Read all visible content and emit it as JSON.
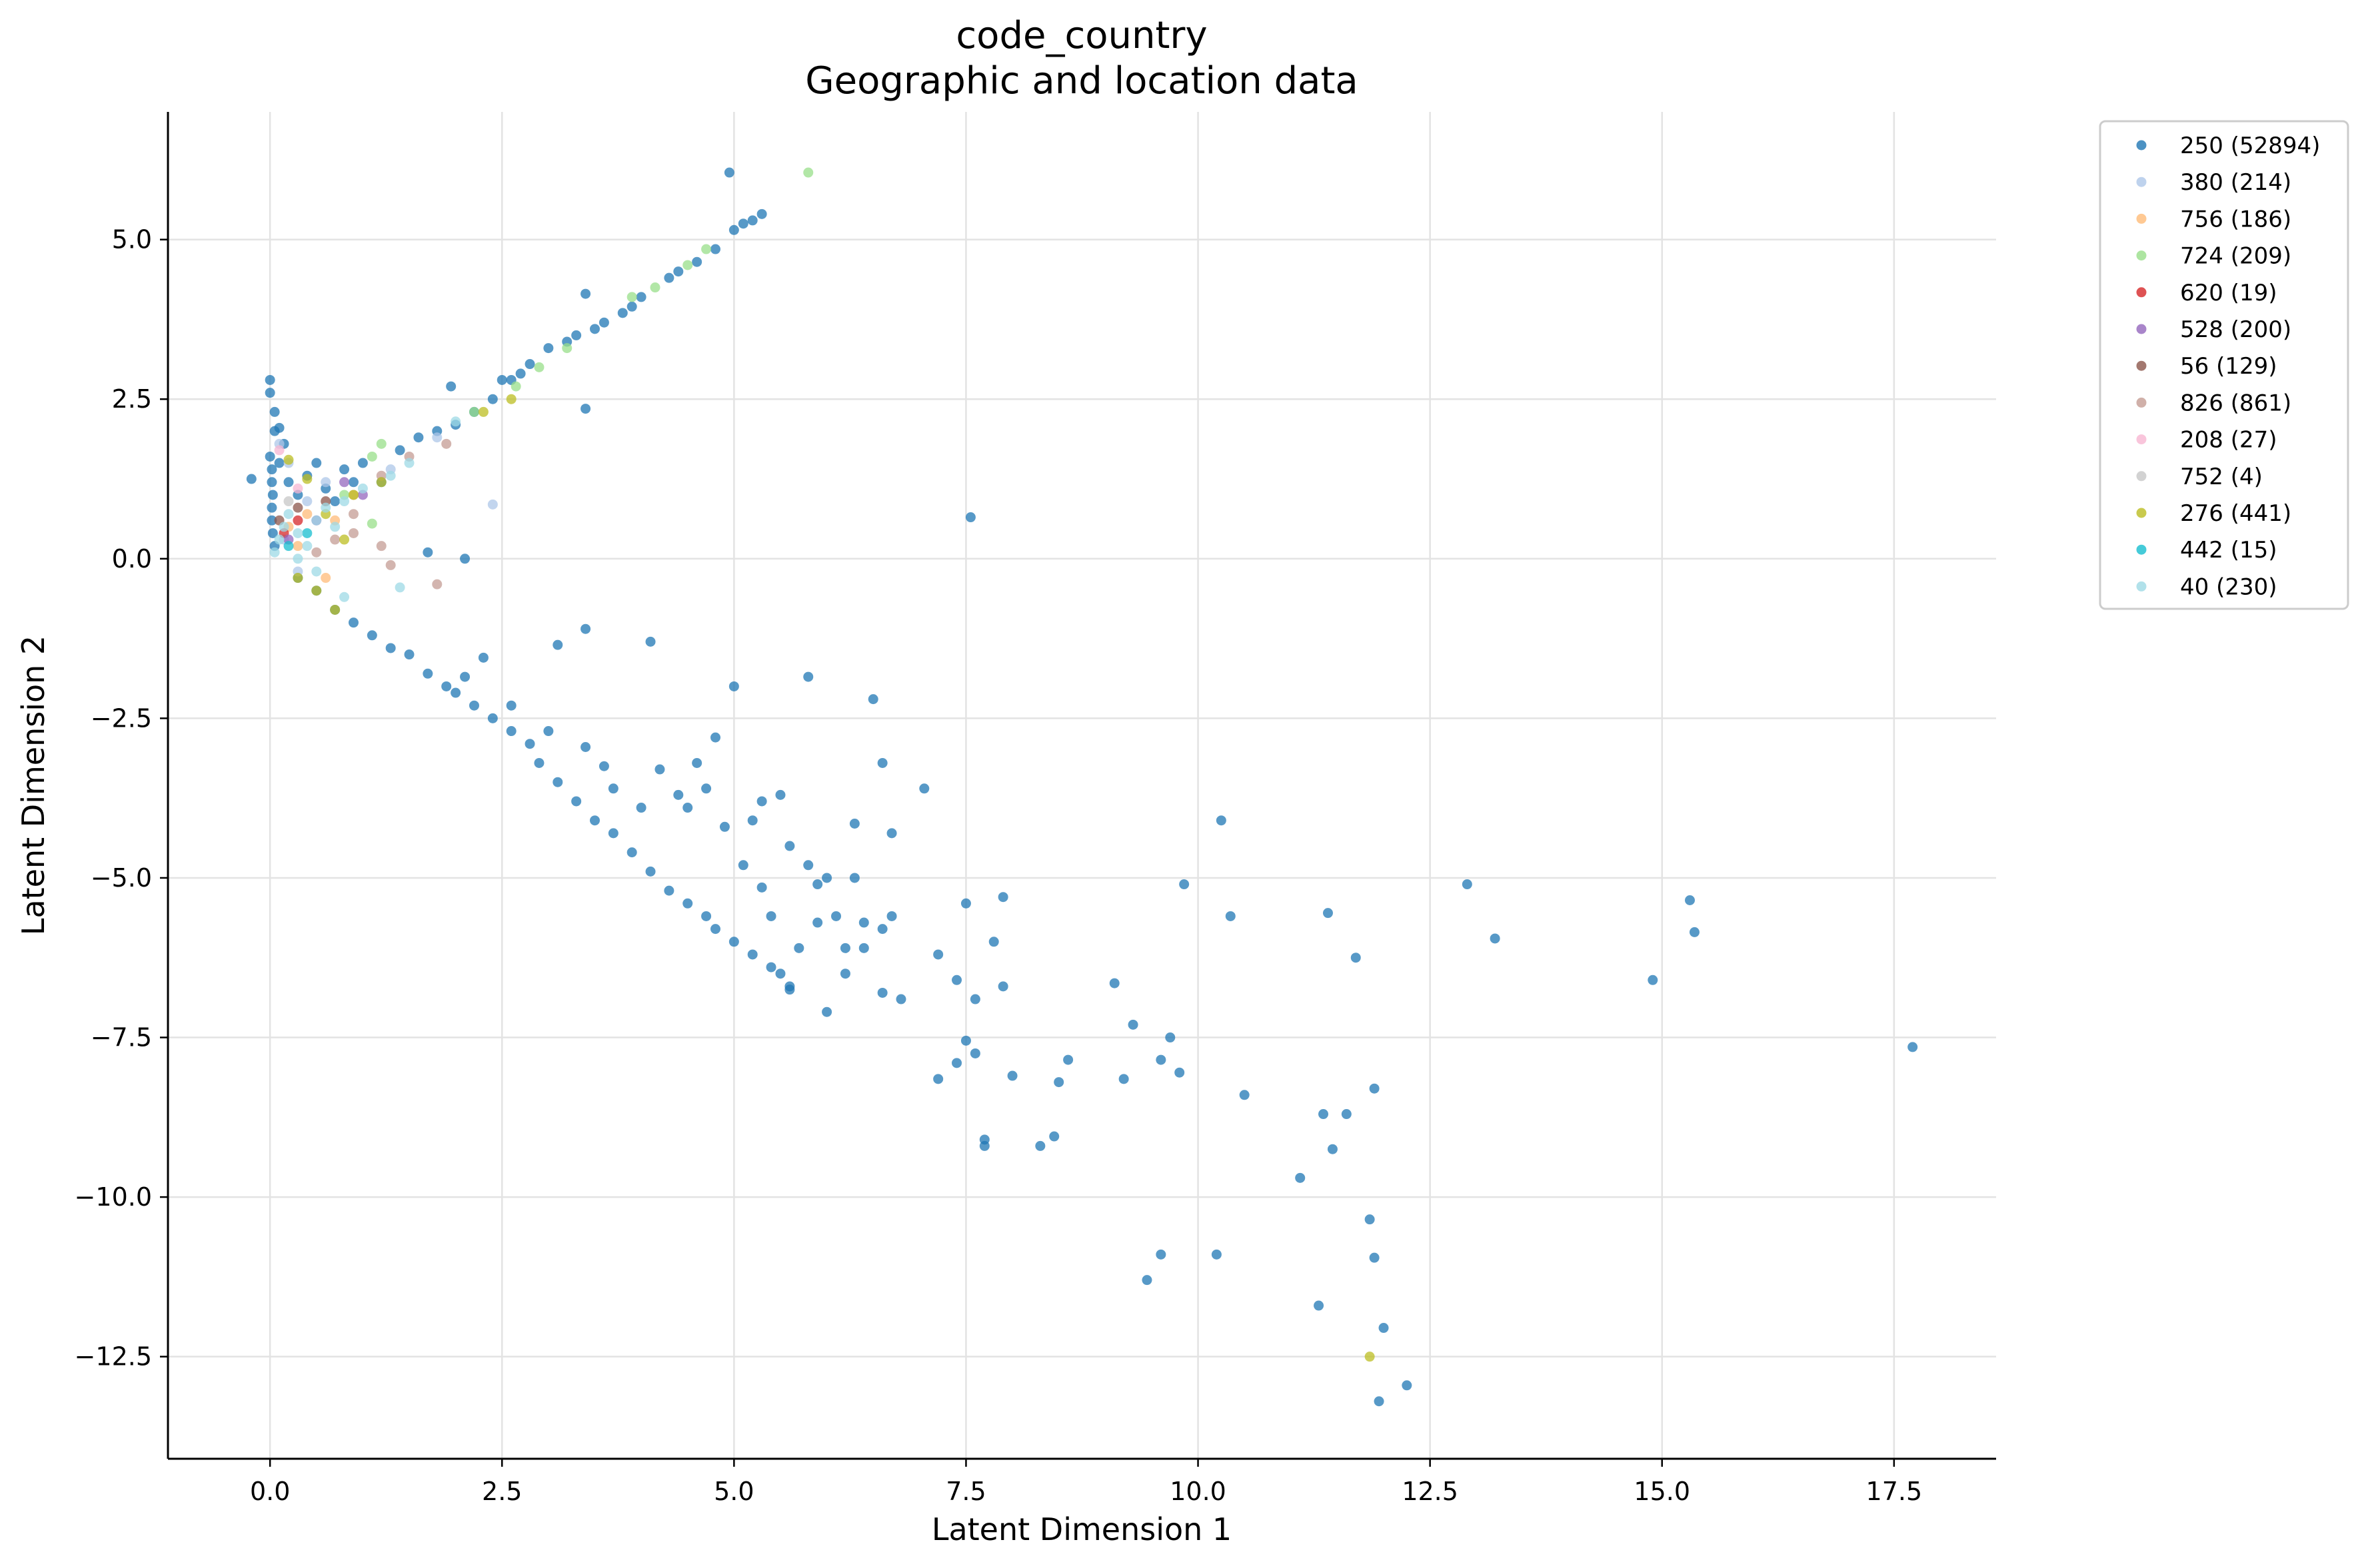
{
  "chart_data": {
    "type": "scatter",
    "title": "code_country",
    "subtitle": "Geographic and location data",
    "xlabel": "Latent Dimension 1",
    "ylabel": "Latent Dimension 2",
    "xlim": [
      -1.1,
      18.6
    ],
    "ylim": [
      -14.1,
      7.0
    ],
    "xticks": [
      0.0,
      2.5,
      5.0,
      7.5,
      10.0,
      12.5,
      15.0,
      17.5
    ],
    "xtick_labels": [
      "0.0",
      "2.5",
      "5.0",
      "7.5",
      "10.0",
      "12.5",
      "15.0",
      "17.5"
    ],
    "yticks": [
      5.0,
      2.5,
      0.0,
      -2.5,
      -5.0,
      -7.5,
      -10.0,
      -12.5
    ],
    "ytick_labels": [
      "5.0",
      "2.5",
      "0.0",
      "−2.5",
      "−5.0",
      "−7.5",
      "−10.0",
      "−12.5"
    ],
    "grid": true,
    "legend_position": "outside-top-right",
    "series": [
      {
        "name": "250 (52894)",
        "color": "#1f77b4",
        "points": [
          [
            -0.2,
            1.25
          ],
          [
            0.0,
            2.8
          ],
          [
            0.0,
            2.6
          ],
          [
            0.05,
            2.3
          ],
          [
            0.05,
            2.0
          ],
          [
            0.0,
            1.6
          ],
          [
            0.02,
            1.4
          ],
          [
            0.02,
            1.2
          ],
          [
            0.03,
            1.0
          ],
          [
            0.02,
            0.8
          ],
          [
            0.02,
            0.6
          ],
          [
            0.03,
            0.4
          ],
          [
            0.05,
            0.2
          ],
          [
            0.1,
            2.05
          ],
          [
            0.15,
            1.8
          ],
          [
            0.1,
            1.5
          ],
          [
            0.2,
            1.2
          ],
          [
            0.3,
            1.0
          ],
          [
            0.4,
            1.3
          ],
          [
            0.5,
            1.5
          ],
          [
            0.6,
            1.1
          ],
          [
            0.7,
            0.9
          ],
          [
            0.8,
            1.4
          ],
          [
            0.9,
            1.2
          ],
          [
            1.0,
            1.5
          ],
          [
            1.2,
            1.2
          ],
          [
            1.4,
            1.7
          ],
          [
            1.6,
            1.9
          ],
          [
            1.8,
            2.0
          ],
          [
            2.0,
            2.1
          ],
          [
            2.2,
            2.3
          ],
          [
            2.4,
            2.5
          ],
          [
            2.5,
            2.8
          ],
          [
            2.7,
            2.9
          ],
          [
            2.8,
            3.05
          ],
          [
            3.0,
            3.3
          ],
          [
            3.2,
            3.4
          ],
          [
            3.3,
            3.5
          ],
          [
            3.4,
            4.15
          ],
          [
            3.5,
            3.6
          ],
          [
            3.6,
            3.7
          ],
          [
            3.8,
            3.85
          ],
          [
            3.9,
            3.95
          ],
          [
            4.0,
            4.1
          ],
          [
            4.3,
            4.4
          ],
          [
            4.4,
            4.5
          ],
          [
            4.6,
            4.65
          ],
          [
            4.8,
            4.85
          ],
          [
            4.95,
            6.05
          ],
          [
            5.0,
            5.15
          ],
          [
            5.1,
            5.25
          ],
          [
            5.2,
            5.3
          ],
          [
            5.3,
            5.4
          ],
          [
            1.95,
            2.7
          ],
          [
            2.6,
            2.8
          ],
          [
            3.4,
            2.35
          ],
          [
            7.55,
            0.65
          ],
          [
            1.7,
            0.1
          ],
          [
            2.1,
            0.0
          ],
          [
            0.3,
            -0.3
          ],
          [
            0.5,
            -0.5
          ],
          [
            0.7,
            -0.8
          ],
          [
            0.9,
            -1.0
          ],
          [
            1.1,
            -1.2
          ],
          [
            1.3,
            -1.4
          ],
          [
            1.5,
            -1.5
          ],
          [
            1.7,
            -1.8
          ],
          [
            1.9,
            -2.0
          ],
          [
            2.0,
            -2.1
          ],
          [
            2.2,
            -2.3
          ],
          [
            2.4,
            -2.5
          ],
          [
            2.6,
            -2.7
          ],
          [
            2.8,
            -2.9
          ],
          [
            2.9,
            -3.2
          ],
          [
            3.1,
            -3.5
          ],
          [
            3.3,
            -3.8
          ],
          [
            3.5,
            -4.1
          ],
          [
            3.7,
            -4.3
          ],
          [
            3.9,
            -4.6
          ],
          [
            4.1,
            -4.9
          ],
          [
            4.3,
            -5.2
          ],
          [
            4.5,
            -5.4
          ],
          [
            4.7,
            -5.6
          ],
          [
            4.8,
            -5.8
          ],
          [
            5.0,
            -6.0
          ],
          [
            5.2,
            -6.2
          ],
          [
            5.4,
            -6.4
          ],
          [
            5.6,
            -6.7
          ],
          [
            5.6,
            -6.75
          ],
          [
            3.1,
            -1.35
          ],
          [
            3.4,
            -1.1
          ],
          [
            4.1,
            -1.3
          ],
          [
            2.3,
            -1.55
          ],
          [
            2.1,
            -1.85
          ],
          [
            2.6,
            -2.3
          ],
          [
            3.0,
            -2.7
          ],
          [
            3.4,
            -2.95
          ],
          [
            3.6,
            -3.25
          ],
          [
            3.7,
            -3.6
          ],
          [
            4.0,
            -3.9
          ],
          [
            4.2,
            -3.3
          ],
          [
            4.4,
            -3.7
          ],
          [
            4.5,
            -3.9
          ],
          [
            4.6,
            -3.2
          ],
          [
            4.7,
            -3.6
          ],
          [
            4.8,
            -2.8
          ],
          [
            4.9,
            -4.2
          ],
          [
            5.0,
            -2.0
          ],
          [
            5.1,
            -4.8
          ],
          [
            5.2,
            -4.1
          ],
          [
            5.3,
            -3.8
          ],
          [
            5.5,
            -3.7
          ],
          [
            5.6,
            -4.5
          ],
          [
            5.8,
            -1.85
          ],
          [
            5.8,
            -4.8
          ],
          [
            5.9,
            -5.1
          ],
          [
            6.0,
            -5.0
          ],
          [
            6.1,
            -5.6
          ],
          [
            6.2,
            -6.1
          ],
          [
            6.3,
            -5.0
          ],
          [
            6.3,
            -4.15
          ],
          [
            6.4,
            -5.7
          ],
          [
            6.5,
            -2.2
          ],
          [
            6.6,
            -3.2
          ],
          [
            6.6,
            -5.8
          ],
          [
            6.7,
            -4.3
          ],
          [
            6.7,
            -5.6
          ],
          [
            6.8,
            -6.9
          ],
          [
            7.05,
            -3.6
          ],
          [
            7.2,
            -6.2
          ],
          [
            7.4,
            -6.6
          ],
          [
            7.5,
            -5.4
          ],
          [
            7.6,
            -6.9
          ],
          [
            7.8,
            -6.0
          ],
          [
            7.9,
            -5.3
          ],
          [
            7.9,
            -6.7
          ],
          [
            5.3,
            -5.15
          ],
          [
            5.4,
            -5.6
          ],
          [
            5.5,
            -6.5
          ],
          [
            5.7,
            -6.1
          ],
          [
            5.9,
            -5.7
          ],
          [
            6.0,
            -7.1
          ],
          [
            6.2,
            -6.5
          ],
          [
            6.4,
            -6.1
          ],
          [
            6.6,
            -6.8
          ],
          [
            7.2,
            -8.15
          ],
          [
            7.4,
            -7.9
          ],
          [
            7.5,
            -7.55
          ],
          [
            7.6,
            -7.75
          ],
          [
            7.7,
            -9.1
          ],
          [
            7.7,
            -9.2
          ],
          [
            8.0,
            -8.1
          ],
          [
            8.3,
            -9.2
          ],
          [
            8.45,
            -9.05
          ],
          [
            8.5,
            -8.2
          ],
          [
            8.6,
            -7.85
          ],
          [
            9.1,
            -6.65
          ],
          [
            9.2,
            -8.15
          ],
          [
            9.3,
            -7.3
          ],
          [
            9.45,
            -11.3
          ],
          [
            9.6,
            -7.85
          ],
          [
            9.6,
            -10.9
          ],
          [
            9.7,
            -7.5
          ],
          [
            9.8,
            -8.05
          ],
          [
            9.85,
            -5.1
          ],
          [
            10.2,
            -10.9
          ],
          [
            10.25,
            -4.1
          ],
          [
            10.35,
            -5.6
          ],
          [
            10.5,
            -8.4
          ],
          [
            11.1,
            -9.7
          ],
          [
            11.3,
            -11.7
          ],
          [
            11.35,
            -8.7
          ],
          [
            11.4,
            -5.55
          ],
          [
            11.45,
            -9.25
          ],
          [
            11.6,
            -8.7
          ],
          [
            11.7,
            -6.25
          ],
          [
            11.85,
            -10.35
          ],
          [
            11.9,
            -10.95
          ],
          [
            11.9,
            -8.3
          ],
          [
            11.95,
            -13.2
          ],
          [
            12.0,
            -12.05
          ],
          [
            12.25,
            -12.95
          ],
          [
            12.9,
            -5.1
          ],
          [
            13.2,
            -5.95
          ],
          [
            14.9,
            -6.6
          ],
          [
            15.3,
            -5.35
          ],
          [
            15.35,
            -5.85
          ],
          [
            17.7,
            -7.65
          ]
        ]
      },
      {
        "name": "380 (214)",
        "color": "#aec7e8",
        "points": [
          [
            0.1,
            1.8
          ],
          [
            0.2,
            1.5
          ],
          [
            0.4,
            0.9
          ],
          [
            0.6,
            1.2
          ],
          [
            0.9,
            1.0
          ],
          [
            1.3,
            1.4
          ],
          [
            1.8,
            1.9
          ],
          [
            2.4,
            0.85
          ],
          [
            0.15,
            0.3
          ],
          [
            0.3,
            -0.2
          ]
        ]
      },
      {
        "name": "756 (186)",
        "color": "#ffbb78",
        "points": [
          [
            0.2,
            0.5
          ],
          [
            0.4,
            0.7
          ],
          [
            0.7,
            0.6
          ],
          [
            0.3,
            0.2
          ],
          [
            0.6,
            -0.3
          ],
          [
            0.9,
            1.0
          ]
        ]
      },
      {
        "name": "724 (209)",
        "color": "#98df8a",
        "points": [
          [
            5.8,
            6.05
          ],
          [
            4.7,
            4.85
          ],
          [
            4.5,
            4.6
          ],
          [
            4.15,
            4.25
          ],
          [
            3.9,
            4.1
          ],
          [
            3.2,
            3.3
          ],
          [
            2.9,
            3.0
          ],
          [
            2.65,
            2.7
          ],
          [
            2.2,
            2.3
          ],
          [
            1.2,
            1.8
          ],
          [
            1.1,
            1.6
          ],
          [
            1.1,
            0.55
          ],
          [
            0.8,
            1.0
          ]
        ]
      },
      {
        "name": "620 (19)",
        "color": "#d62728",
        "points": [
          [
            0.15,
            0.4
          ],
          [
            0.3,
            0.6
          ]
        ]
      },
      {
        "name": "528 (200)",
        "color": "#9467bd",
        "points": [
          [
            0.2,
            0.3
          ],
          [
            0.5,
            0.6
          ],
          [
            0.8,
            1.2
          ],
          [
            1.0,
            1.0
          ]
        ]
      },
      {
        "name": "56 (129)",
        "color": "#8c564b",
        "points": [
          [
            0.1,
            0.6
          ],
          [
            0.3,
            0.8
          ],
          [
            0.6,
            0.9
          ]
        ]
      },
      {
        "name": "826 (861)",
        "color": "#c49c94",
        "points": [
          [
            0.9,
            0.4
          ],
          [
            1.2,
            0.2
          ],
          [
            1.8,
            -0.4
          ],
          [
            1.3,
            -0.1
          ],
          [
            0.5,
            0.1
          ],
          [
            0.7,
            0.3
          ],
          [
            0.9,
            0.7
          ],
          [
            1.2,
            1.3
          ],
          [
            1.5,
            1.6
          ],
          [
            1.9,
            1.8
          ]
        ]
      },
      {
        "name": "208 (27)",
        "color": "#f7b6d2",
        "points": [
          [
            0.1,
            1.7
          ],
          [
            0.3,
            1.1
          ]
        ]
      },
      {
        "name": "752 (4)",
        "color": "#c7c7c7",
        "points": [
          [
            0.2,
            0.9
          ]
        ]
      },
      {
        "name": "276 (441)",
        "color": "#bcbd22",
        "points": [
          [
            11.85,
            -12.5
          ],
          [
            0.2,
            1.55
          ],
          [
            0.4,
            1.25
          ],
          [
            0.6,
            0.7
          ],
          [
            0.9,
            1.0
          ],
          [
            1.2,
            1.2
          ],
          [
            0.5,
            -0.5
          ],
          [
            0.3,
            -0.3
          ],
          [
            0.7,
            -0.8
          ],
          [
            0.8,
            0.3
          ],
          [
            2.3,
            2.3
          ],
          [
            2.6,
            2.5
          ]
        ]
      },
      {
        "name": "442 (15)",
        "color": "#17becf",
        "points": [
          [
            0.2,
            0.2
          ],
          [
            0.4,
            0.4
          ]
        ]
      },
      {
        "name": "40 (230)",
        "color": "#9edae5",
        "points": [
          [
            0.05,
            0.1
          ],
          [
            0.1,
            0.3
          ],
          [
            0.15,
            0.5
          ],
          [
            0.2,
            0.7
          ],
          [
            0.3,
            0.4
          ],
          [
            0.4,
            0.2
          ],
          [
            0.5,
            0.6
          ],
          [
            0.6,
            0.8
          ],
          [
            0.7,
            0.5
          ],
          [
            0.8,
            0.9
          ],
          [
            1.0,
            1.1
          ],
          [
            1.3,
            1.3
          ],
          [
            1.5,
            1.5
          ],
          [
            2.0,
            2.15
          ],
          [
            0.5,
            -0.2
          ],
          [
            0.8,
            -0.6
          ],
          [
            1.4,
            -0.45
          ],
          [
            0.3,
            0.0
          ]
        ]
      }
    ]
  }
}
